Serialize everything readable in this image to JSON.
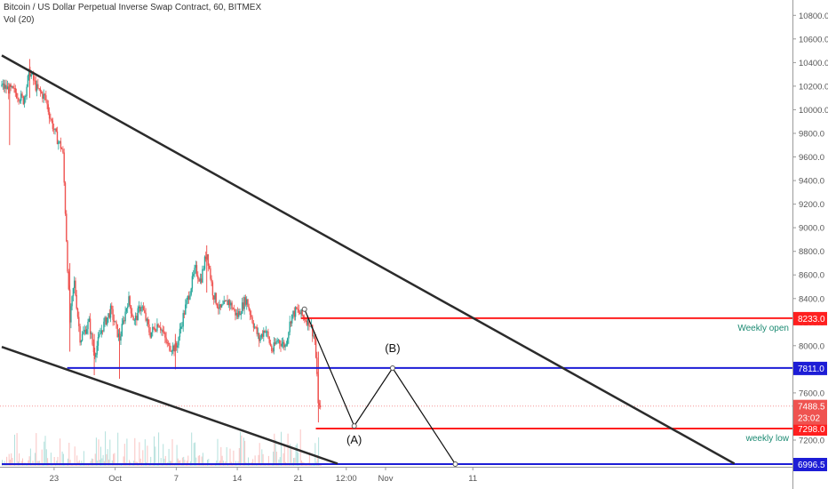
{
  "header": {
    "symbol_title": "Bitcoin / US Dollar Perpetual Inverse Swap Contract, 60, BITMEX",
    "indicator": "Vol (20)"
  },
  "colors": {
    "up": "#26a69a",
    "down": "#ef5350",
    "level_red": "#ff1f1f",
    "level_blue": "#1d1dd6",
    "trend": "#2b2b2b",
    "text_teal": "#1b8a72"
  },
  "chart_data": {
    "type": "candlestick",
    "ylim": [
      6996.5,
      10900
    ],
    "y_ticks": [
      7200,
      7400,
      7600,
      7800,
      8000,
      8200,
      8400,
      8600,
      8800,
      9000,
      9200,
      9400,
      9600,
      9800,
      10000,
      10200,
      10400,
      10600,
      10800
    ],
    "y_tick_labels": [
      "7200.0",
      "7400.0",
      "7600.0",
      "7800.0",
      "8000.0",
      "8200.0",
      "8400.0",
      "8600.0",
      "8800.0",
      "9000.0",
      "9200.0",
      "9400.0",
      "9600.0",
      "9800.0",
      "10000.0",
      "10200.0",
      "10400.0",
      "10600.0",
      "10800.0"
    ],
    "x_days": [
      17,
      61
    ],
    "x_ticks": [
      {
        "day": 23,
        "label": "23"
      },
      {
        "day": 30,
        "label": "Oct"
      },
      {
        "day": 37,
        "label": "7"
      },
      {
        "day": 44,
        "label": "14"
      },
      {
        "day": 51,
        "label": "21"
      },
      {
        "day": 56.5,
        "label": "12:00"
      },
      {
        "day": 61,
        "label": "Nov"
      },
      {
        "day": 71,
        "label": "11"
      }
    ],
    "price_path": [
      [
        17,
        10200
      ],
      [
        18.5,
        10150
      ],
      [
        19.5,
        10080
      ],
      [
        20.2,
        10330
      ],
      [
        21,
        10180
      ],
      [
        22,
        10100
      ],
      [
        22.5,
        9950
      ],
      [
        23.2,
        9780
      ],
      [
        24.0,
        9650
      ],
      [
        24.8,
        8200
      ],
      [
        25.3,
        8550
      ],
      [
        26,
        8050
      ],
      [
        27,
        8200
      ],
      [
        27.6,
        7920
      ],
      [
        28.5,
        8150
      ],
      [
        29.5,
        8300
      ],
      [
        30.5,
        8050
      ],
      [
        31.5,
        8400
      ],
      [
        32.2,
        8200
      ],
      [
        33,
        8350
      ],
      [
        34,
        8100
      ],
      [
        35,
        8200
      ],
      [
        36,
        8000
      ],
      [
        37,
        7980
      ],
      [
        37.8,
        8250
      ],
      [
        38.5,
        8450
      ],
      [
        39.2,
        8650
      ],
      [
        39.8,
        8550
      ],
      [
        40.5,
        8800
      ],
      [
        41.2,
        8450
      ],
      [
        42,
        8300
      ],
      [
        43,
        8380
      ],
      [
        44,
        8250
      ],
      [
        45,
        8400
      ],
      [
        45.8,
        8200
      ],
      [
        46.5,
        8050
      ],
      [
        47.2,
        8150
      ],
      [
        48,
        7950
      ],
      [
        48.6,
        8050
      ],
      [
        49.5,
        8000
      ],
      [
        50.2,
        8250
      ],
      [
        50.8,
        8300
      ],
      [
        51.5,
        8250
      ],
      [
        52.3,
        8200
      ],
      [
        52.9,
        8050
      ],
      [
        53.3,
        7500
      ],
      [
        53.6,
        7430
      ]
    ],
    "wicks": [
      {
        "day": 20.2,
        "high": 10430,
        "low": 10100
      },
      {
        "day": 17.9,
        "high": 10220,
        "low": 9700
      },
      {
        "day": 24.8,
        "high": 8700,
        "low": 7950
      },
      {
        "day": 27.6,
        "high": 8100,
        "low": 7750
      },
      {
        "day": 30.5,
        "high": 8150,
        "low": 7720
      },
      {
        "day": 40.5,
        "high": 8850,
        "low": 8450
      },
      {
        "day": 36.9,
        "high": 8100,
        "low": 7800
      },
      {
        "day": 53.3,
        "high": 7950,
        "low": 7350
      }
    ],
    "levels": [
      {
        "price": 8233.0,
        "label": "8233.0",
        "note": "Weekly open",
        "color_key": "level_red",
        "day_start": 51.3
      },
      {
        "price": 7811.0,
        "label": "7811.0",
        "note": "",
        "color_key": "level_blue",
        "day_start": 24.5
      },
      {
        "price": 7298.0,
        "label": "7298.0",
        "note": "weekly low",
        "color_key": "level_red",
        "day_start": 53.0
      },
      {
        "price": 6996.5,
        "label": "6996.5",
        "note": "",
        "color_key": "level_blue",
        "day_start": 17
      }
    ],
    "current_price": {
      "value": 7488.5,
      "label": "7488.5",
      "countdown": "23:02"
    },
    "trendlines": [
      {
        "from": [
          17,
          10460
        ],
        "to": [
          101,
          7000
        ]
      },
      {
        "from": [
          17,
          7990
        ],
        "to": [
          55.5,
          7000
        ]
      }
    ],
    "projection": [
      [
        51.7,
        8310
      ],
      [
        57.4,
        7320
      ],
      [
        61.8,
        7810
      ],
      [
        69.0,
        6996.5
      ]
    ],
    "wave_labels": [
      {
        "label": "(A)",
        "day": 57.4,
        "price": 7170
      },
      {
        "label": "(B)",
        "day": 61.8,
        "price": 7945
      }
    ],
    "volume_profile_max": 40
  }
}
